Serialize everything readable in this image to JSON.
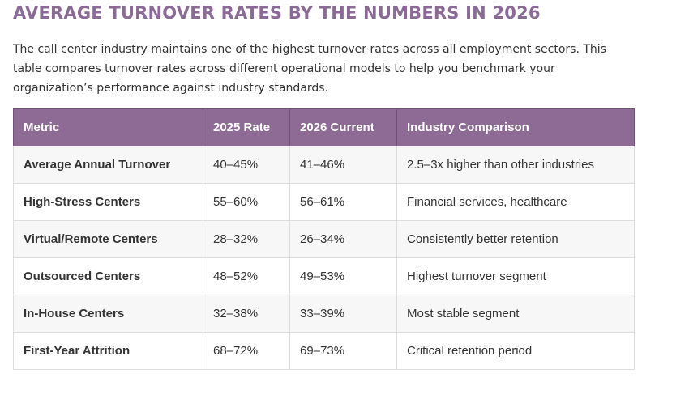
{
  "header": {
    "title": "AVERAGE TURNOVER RATES BY THE NUMBERS IN 2026"
  },
  "intro": {
    "text": "The call center industry maintains one of the highest turnover rates across all employment sectors. This table compares turnover rates across different operational models to help you benchmark your organization’s performance against industry standards."
  },
  "table": {
    "columns": [
      "Metric",
      "2025 Rate",
      "2026 Current",
      "Industry Comparison"
    ],
    "rows": [
      [
        "Average Annual Turnover",
        "40–45%",
        "41–46%",
        "2.5–3x higher than other industries"
      ],
      [
        "High-Stress Centers",
        "55–60%",
        "56–61%",
        "Financial services, healthcare"
      ],
      [
        "Virtual/Remote Centers",
        "28–32%",
        "26–34%",
        "Consistently better retention"
      ],
      [
        "Outsourced Centers",
        "48–52%",
        "49–53%",
        "Highest turnover segment"
      ],
      [
        "In-House Centers",
        "32–38%",
        "33–39%",
        "Most stable segment"
      ],
      [
        "First-Year Attrition",
        "68–72%",
        "69–73%",
        "Critical retention period"
      ]
    ]
  },
  "colors": {
    "title": "#8b6b96",
    "header_bg": "#8d6b94",
    "row_alt": "#f7f7f7"
  }
}
